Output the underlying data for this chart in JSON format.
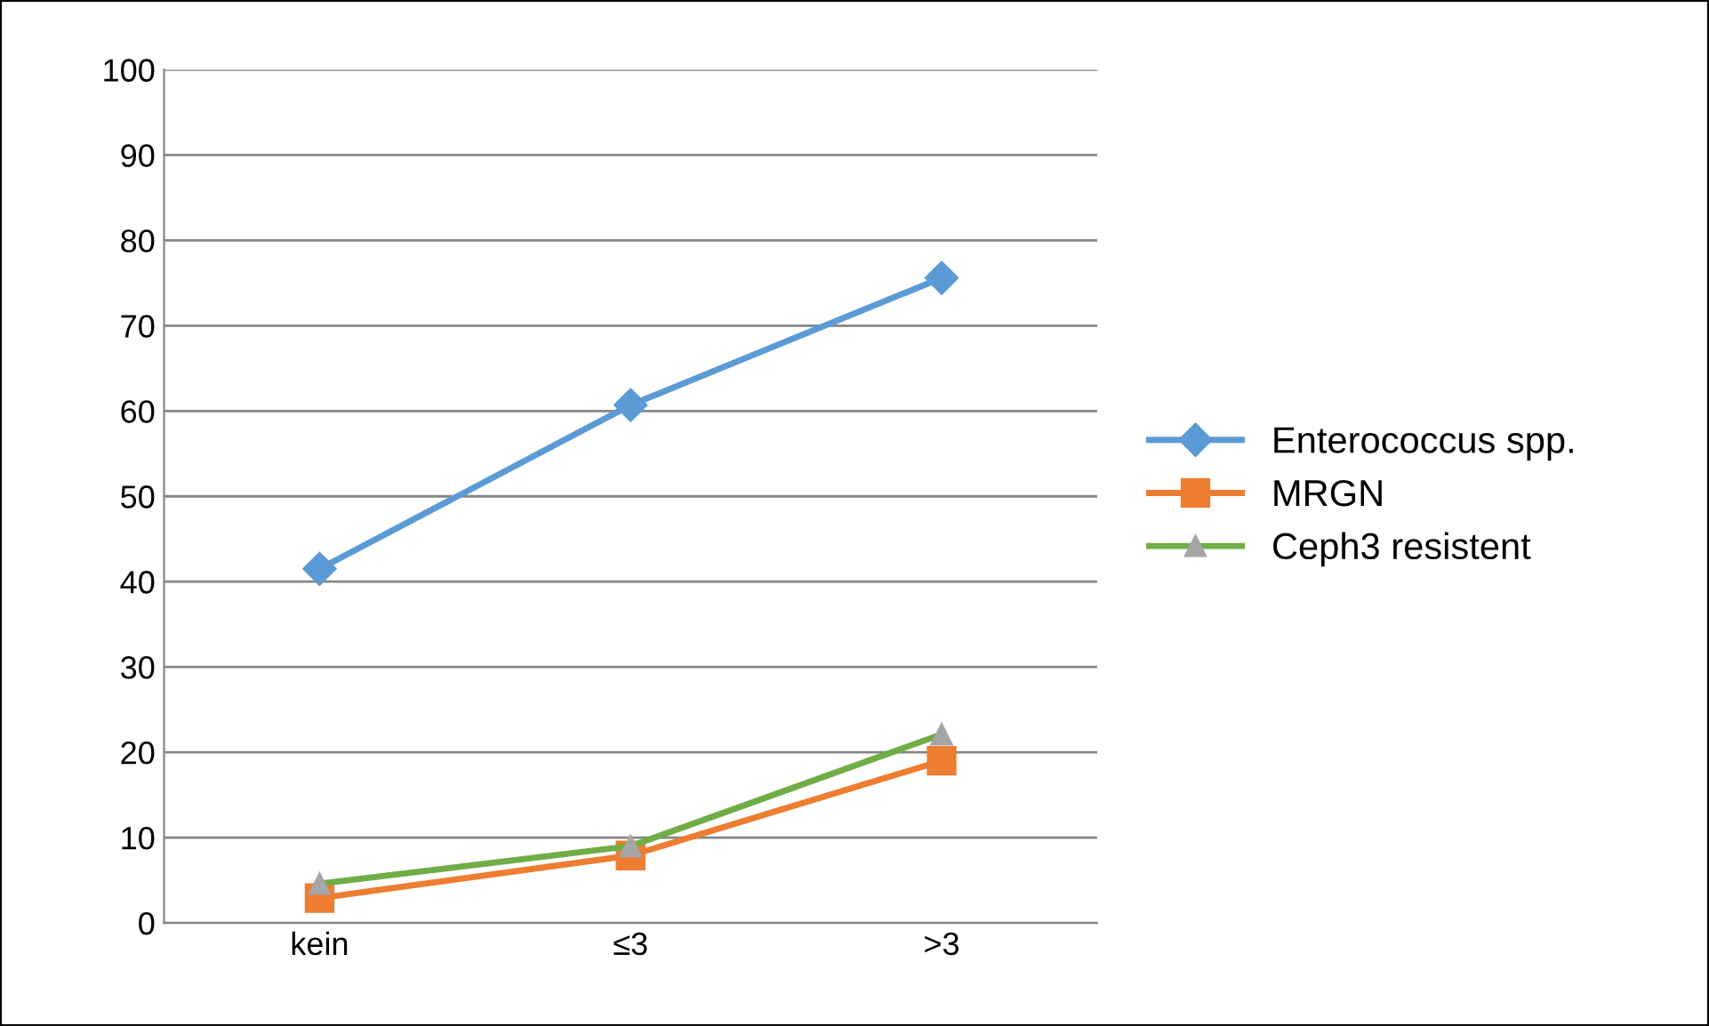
{
  "chart_data": {
    "type": "line",
    "categories": [
      "kein",
      "≤3",
      ">3"
    ],
    "series": [
      {
        "name": "Enterococcus spp.",
        "color": "#5b9bd5",
        "marker": "diamond",
        "values": [
          41.5,
          60.7,
          75.6
        ]
      },
      {
        "name": "MRGN",
        "color": "#ed7d31",
        "marker": "square",
        "values": [
          2.9,
          7.9,
          19.0
        ]
      },
      {
        "name": "Ceph3 resistent",
        "color": "#70ad47",
        "marker": "triangle",
        "values": [
          4.6,
          9.0,
          22.1
        ]
      }
    ],
    "ylim": [
      0,
      100
    ],
    "yticks": [
      0,
      10,
      20,
      30,
      40,
      50,
      60,
      70,
      80,
      90,
      100
    ],
    "grid": "y",
    "legend": "right",
    "line_style": "solid"
  }
}
